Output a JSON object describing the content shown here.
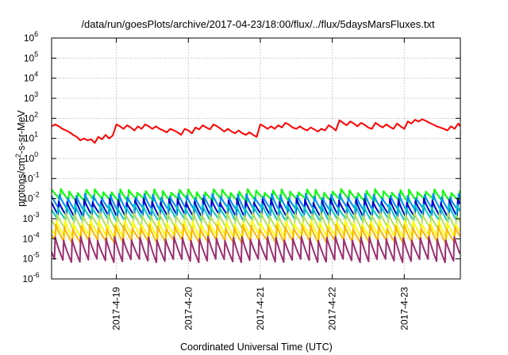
{
  "chart_data": {
    "type": "line",
    "title": "/data/run/goesPlots/archive/2017-04-23/18:00/flux/../flux/5daysMarsFluxes.txt",
    "xlabel": "Coordinated Universal Time (UTC)",
    "ylabel": {
      "base": "protons/cm",
      "sup": "2",
      "rest": "-s-sr-MeV"
    },
    "y_scale": "log",
    "ylim_exp": [
      -6,
      6
    ],
    "y_ticks": [
      {
        "exp": -6,
        "base": "10",
        "sup": "-6"
      },
      {
        "exp": -5,
        "base": "10",
        "sup": "-5"
      },
      {
        "exp": -4,
        "base": "10",
        "sup": "-4"
      },
      {
        "exp": -3,
        "base": "10",
        "sup": "-3"
      },
      {
        "exp": -2,
        "base": "10",
        "sup": "-2"
      },
      {
        "exp": -1,
        "base": "10",
        "sup": "-1"
      },
      {
        "exp": 0,
        "base": "10",
        "sup": "0"
      },
      {
        "exp": 1,
        "base": "10",
        "sup": "1"
      },
      {
        "exp": 2,
        "base": "10",
        "sup": "2"
      },
      {
        "exp": 3,
        "base": "10",
        "sup": "3"
      },
      {
        "exp": 4,
        "base": "10",
        "sup": "4"
      },
      {
        "exp": 5,
        "base": "10",
        "sup": "5"
      },
      {
        "exp": 6,
        "base": "10",
        "sup": "6"
      }
    ],
    "xlim_days": [
      18.1,
      23.78
    ],
    "x_ticks": [
      {
        "day": 19,
        "label": "2017-4-19"
      },
      {
        "day": 20,
        "label": "2017-4-20"
      },
      {
        "day": 21,
        "label": "2017-4-21"
      },
      {
        "day": 22,
        "label": "2017-4-22"
      },
      {
        "day": 23,
        "label": "2017-4-23"
      }
    ],
    "grid": true,
    "series": [
      {
        "color": "#ff0000",
        "x": [
          18.1,
          18.15,
          18.2,
          18.25,
          18.3,
          18.35,
          18.4,
          18.45,
          18.5,
          18.55,
          18.6,
          18.65,
          18.7,
          18.75,
          18.8,
          18.85,
          18.9,
          18.95,
          19.0,
          19.05,
          19.1,
          19.15,
          19.2,
          19.25,
          19.3,
          19.35,
          19.4,
          19.45,
          19.5,
          19.55,
          19.6,
          19.65,
          19.7,
          19.75,
          19.8,
          19.85,
          19.9,
          19.95,
          20.0,
          20.05,
          20.1,
          20.15,
          20.2,
          20.25,
          20.3,
          20.35,
          20.4,
          20.45,
          20.5,
          20.55,
          20.6,
          20.65,
          20.7,
          20.75,
          20.8,
          20.85,
          20.9,
          20.95,
          21.0,
          21.05,
          21.1,
          21.15,
          21.2,
          21.25,
          21.3,
          21.35,
          21.4,
          21.45,
          21.5,
          21.55,
          21.6,
          21.65,
          21.7,
          21.75,
          21.8,
          21.85,
          21.9,
          21.95,
          22.0,
          22.05,
          22.1,
          22.15,
          22.2,
          22.25,
          22.3,
          22.35,
          22.4,
          22.45,
          22.5,
          22.55,
          22.6,
          22.65,
          22.7,
          22.75,
          22.8,
          22.85,
          22.9,
          22.95,
          23.0,
          23.05,
          23.1,
          23.15,
          23.2,
          23.25,
          23.3,
          23.35,
          23.4,
          23.45,
          23.5,
          23.55,
          23.6,
          23.65,
          23.7,
          23.75,
          23.78
        ],
        "y": [
          40,
          50,
          40,
          30,
          25,
          20,
          15,
          12,
          8,
          10,
          8,
          9,
          6,
          12,
          9,
          15,
          10,
          14,
          50,
          40,
          30,
          45,
          35,
          25,
          40,
          30,
          50,
          40,
          30,
          40,
          30,
          25,
          20,
          30,
          25,
          20,
          15,
          30,
          25,
          18,
          35,
          28,
          45,
          35,
          28,
          50,
          40,
          30,
          22,
          30,
          22,
          18,
          25,
          18,
          15,
          20,
          15,
          12,
          50,
          40,
          30,
          40,
          30,
          45,
          35,
          60,
          48,
          35,
          30,
          40,
          30,
          25,
          35,
          28,
          22,
          30,
          25,
          45,
          35,
          25,
          80,
          60,
          45,
          70,
          55,
          40,
          60,
          48,
          35,
          30,
          60,
          45,
          35,
          50,
          38,
          30,
          55,
          40,
          30,
          70,
          55,
          85,
          70,
          90,
          75,
          60,
          50,
          40,
          35,
          30,
          25,
          40,
          30,
          55,
          40
        ]
      }
    ],
    "band_series": [
      {
        "color": "#00ff00",
        "low": 0.008,
        "high": 0.03
      },
      {
        "color": "#008cff",
        "low": 0.0025,
        "high": 0.015
      },
      {
        "color": "#0000cc",
        "low": 0.0012,
        "high": 0.009
      },
      {
        "color": "#00c8c8",
        "low": 0.0008,
        "high": 0.005
      },
      {
        "color": "#b4e05a",
        "low": 0.0003,
        "high": 0.002
      },
      {
        "color": "#ffff00",
        "low": 0.00012,
        "high": 0.0008
      },
      {
        "color": "#ffb400",
        "low": 7e-05,
        "high": 0.0005
      },
      {
        "color": "#9b2f6e",
        "low": 8e-06,
        "high": 0.00015
      }
    ]
  }
}
